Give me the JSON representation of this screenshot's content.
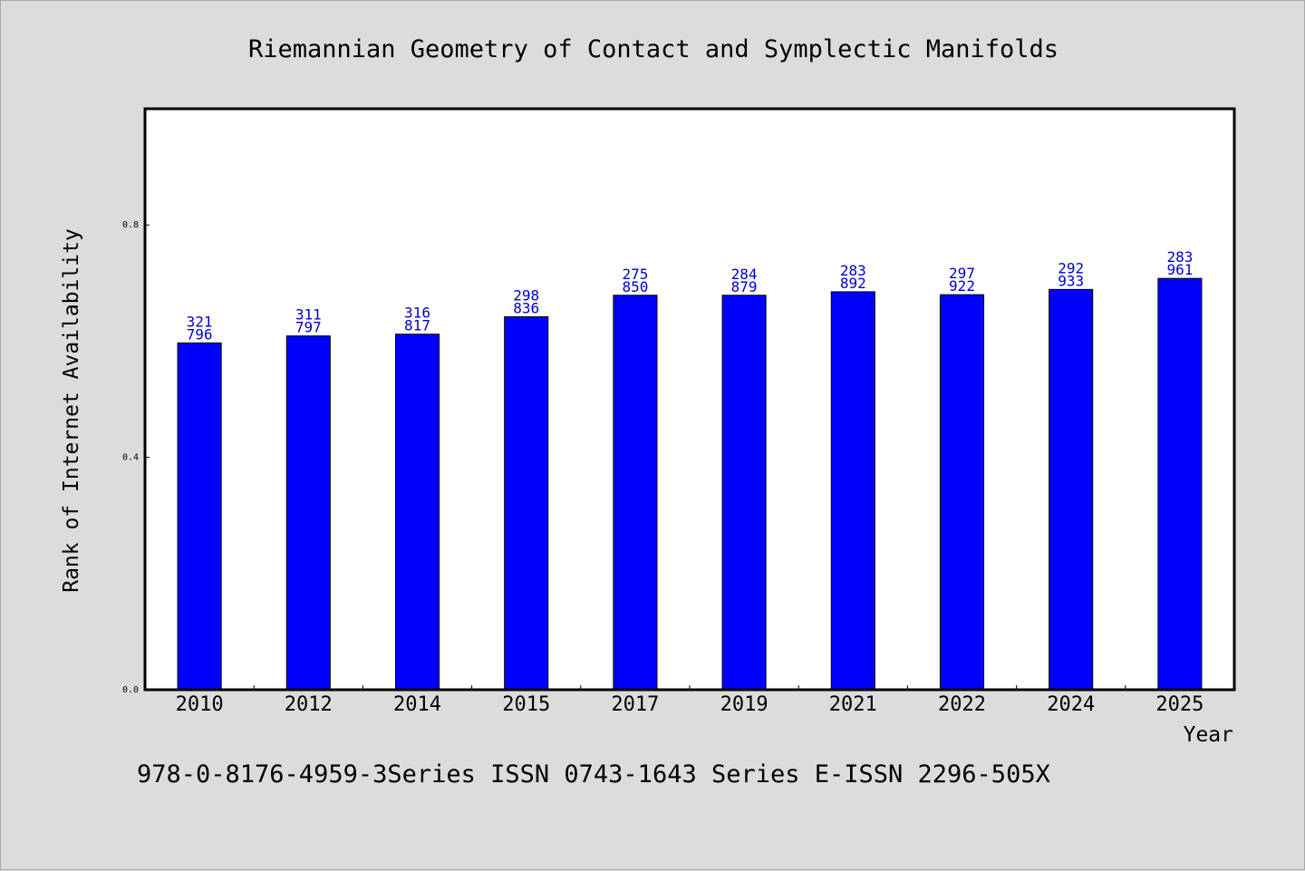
{
  "footer_text": "978-0-8176-4959-3Series ISSN 0743-1643 Series E-ISSN 2296-505X",
  "chart_data": {
    "type": "bar",
    "title": "Riemannian Geometry of Contact and Symplectic Manifolds",
    "xlabel": "Year",
    "ylabel": "Rank of Internet Availability",
    "categories": [
      "2010",
      "2012",
      "2014",
      "2015",
      "2017",
      "2019",
      "2021",
      "2022",
      "2024",
      "2025"
    ],
    "values": [
      0.597,
      0.609,
      0.612,
      0.642,
      0.679,
      0.679,
      0.685,
      0.68,
      0.689,
      0.708
    ],
    "data_labels": [
      [
        "321",
        "796"
      ],
      [
        "311",
        "797"
      ],
      [
        "316",
        "817"
      ],
      [
        "298",
        "836"
      ],
      [
        "275",
        "850"
      ],
      [
        "284",
        "879"
      ],
      [
        "283",
        "892"
      ],
      [
        "297",
        "922"
      ],
      [
        "292",
        "933"
      ],
      [
        "283",
        "961"
      ]
    ],
    "ylim": [
      0.0,
      1.0
    ],
    "yticks": [
      0.0,
      0.4,
      0.8
    ],
    "ytick_labels": [
      "0.0",
      "0.4",
      "0.8"
    ],
    "grid": false,
    "legend": "none",
    "colors": {
      "bar": "#0000ff",
      "bar_edge": "#000000",
      "data_label": "#0000cc",
      "background": "#dcdcdc",
      "plot_background": "#ffffff"
    }
  }
}
